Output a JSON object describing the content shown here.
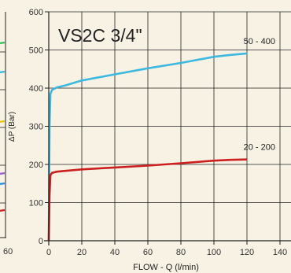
{
  "left_fragment": {
    "x_tick_label": "60",
    "line_colors": [
      "#3cbf5a",
      "#38b8d8",
      "#e8c21a",
      "#9a5bd0",
      "#cc2020",
      "#2a8fe0"
    ]
  },
  "chart_data": {
    "type": "line",
    "title": "VS2C 3/4\"",
    "xlabel": "FLOW - Q (l/min)",
    "ylabel": "ΔP (Bar)",
    "xlim": [
      0,
      140
    ],
    "ylim": [
      0,
      600
    ],
    "x_ticks": [
      0,
      20,
      40,
      60,
      80,
      100,
      120,
      140
    ],
    "y_ticks": [
      0,
      100,
      200,
      300,
      400,
      500,
      600
    ],
    "grid": true,
    "series": [
      {
        "name": "50 - 400",
        "color": "#3db9df",
        "x": [
          0,
          0.5,
          1,
          2,
          5,
          10,
          20,
          40,
          60,
          80,
          100,
          110,
          120
        ],
        "y": [
          0,
          300,
          385,
          395,
          402,
          407,
          420,
          436,
          452,
          466,
          482,
          487,
          491
        ]
      },
      {
        "name": "20 - 200",
        "color": "#cc2020",
        "x": [
          0,
          0.5,
          1,
          2,
          5,
          10,
          20,
          40,
          60,
          80,
          100,
          110,
          120
        ],
        "y": [
          0,
          120,
          172,
          178,
          181,
          183,
          187,
          192,
          197,
          203,
          210,
          212,
          213
        ]
      }
    ]
  }
}
